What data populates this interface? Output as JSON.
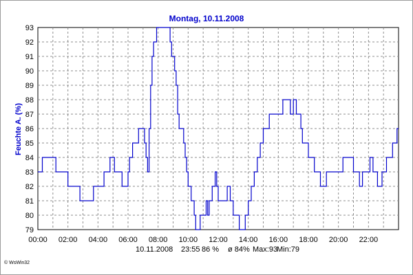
{
  "chart_data": {
    "type": "line",
    "title": "Montag, 10.11.2008",
    "ylabel": "Feuchte A. (%)",
    "xlabel": "",
    "xlim": [
      0,
      24
    ],
    "ylim": [
      79,
      93
    ],
    "grid": true,
    "x_tick_labels": [
      "00:00",
      "02:00",
      "04:00",
      "06:00",
      "08:00",
      "10:00",
      "12:00",
      "14:00",
      "16:00",
      "18:00",
      "20:00",
      "22:00"
    ],
    "y_tick_labels": [
      "79",
      "80",
      "81",
      "82",
      "83",
      "84",
      "85",
      "86",
      "87",
      "88",
      "89",
      "90",
      "91",
      "92",
      "93"
    ],
    "series": [
      {
        "color": "#0000cc",
        "x": [
          0.0,
          0.1,
          0.3,
          1.0,
          1.2,
          1.8,
          2.0,
          2.6,
          2.8,
          3.5,
          3.7,
          4.2,
          4.4,
          4.6,
          4.8,
          5.0,
          5.1,
          5.3,
          5.6,
          5.8,
          6.0,
          6.1,
          6.3,
          6.5,
          6.7,
          7.0,
          7.1,
          7.2,
          7.3,
          7.4,
          7.5,
          7.6,
          7.7,
          7.8,
          7.9,
          8.0,
          8.1,
          8.2,
          8.3,
          8.5,
          8.7,
          8.8,
          8.9,
          9.0,
          9.1,
          9.2,
          9.3,
          9.4,
          9.5,
          9.6,
          9.7,
          9.8,
          9.9,
          10.0,
          10.1,
          10.2,
          10.3,
          10.4,
          10.5,
          10.6,
          10.8,
          11.0,
          11.1,
          11.2,
          11.3,
          11.4,
          11.5,
          11.6,
          11.7,
          11.8,
          11.9,
          12.0,
          12.1,
          12.2,
          12.4,
          12.6,
          12.8,
          12.9,
          13.0,
          13.1,
          13.2,
          13.3,
          13.4,
          13.5,
          13.6,
          13.7,
          13.8,
          13.9,
          14.0,
          14.1,
          14.2,
          14.3,
          14.4,
          14.6,
          14.8,
          15.0,
          15.2,
          15.4,
          15.6,
          15.8,
          16.0,
          16.3,
          16.5,
          16.7,
          16.8,
          16.9,
          17.0,
          17.1,
          17.2,
          17.3,
          17.4,
          17.5,
          17.6,
          17.8,
          18.0,
          18.2,
          18.4,
          18.6,
          18.8,
          19.0,
          19.2,
          19.5,
          19.7,
          20.0,
          20.3,
          20.5,
          20.7,
          21.0,
          21.2,
          21.4,
          21.6,
          21.8,
          22.0,
          22.1,
          22.3,
          22.5,
          22.6,
          22.8,
          22.9,
          23.0,
          23.2,
          23.4,
          23.6,
          23.8,
          23.9
        ],
        "values": [
          83,
          83,
          84,
          84,
          83,
          83,
          82,
          82,
          81,
          81,
          82,
          82,
          83,
          83,
          84,
          84,
          83,
          83,
          82,
          82,
          83,
          84,
          85,
          85,
          86,
          86,
          85,
          84,
          83,
          86,
          89,
          91,
          92,
          92,
          93,
          93,
          93,
          93,
          93,
          93,
          93,
          92,
          91,
          91,
          90,
          89,
          87,
          86,
          86,
          86,
          85,
          84,
          83,
          82,
          82,
          81,
          81,
          80,
          79,
          79,
          80,
          80,
          80,
          81,
          80,
          81,
          81,
          82,
          82,
          83,
          82,
          81,
          81,
          81,
          81,
          82,
          81,
          81,
          80,
          80,
          80,
          80,
          79,
          79,
          79,
          79,
          80,
          80,
          81,
          81,
          82,
          82,
          83,
          84,
          85,
          86,
          86,
          87,
          87,
          87,
          87,
          88,
          88,
          88,
          87,
          87,
          88,
          88,
          87,
          87,
          87,
          86,
          85,
          85,
          84,
          84,
          83,
          83,
          82,
          82,
          83,
          83,
          83,
          83,
          84,
          84,
          84,
          83,
          83,
          82,
          83,
          83,
          83,
          84,
          83,
          83,
          82,
          82,
          83,
          83,
          84,
          84,
          85,
          85,
          86
        ]
      }
    ]
  },
  "footer": {
    "date": "10.11.2008",
    "time": "23:55",
    "current": "86 %",
    "average": "ø 84%",
    "max": "Max:93",
    "min": "Min:79"
  },
  "credit": "© WsWin32"
}
